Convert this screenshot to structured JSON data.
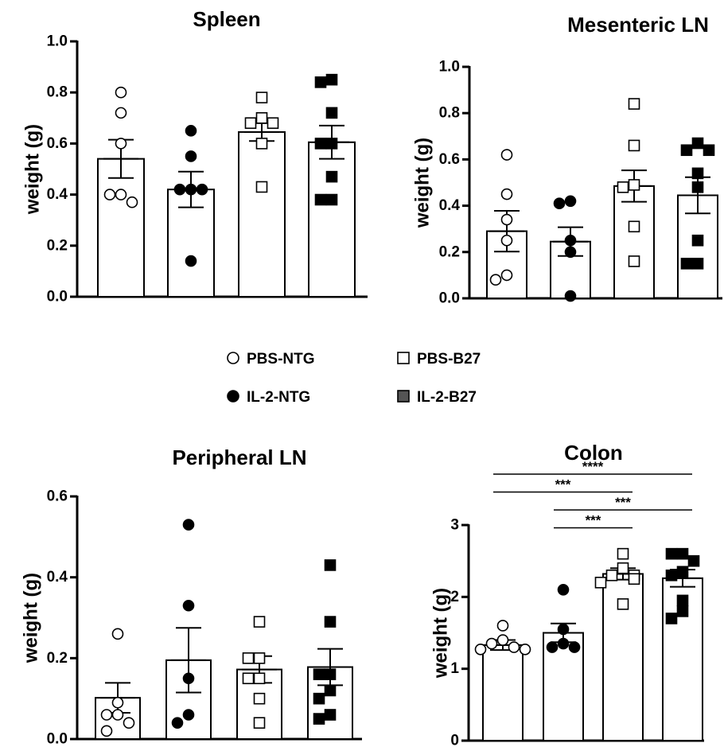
{
  "legend": {
    "items": [
      {
        "label": "PBS-NTG",
        "shape": "circle",
        "fill": "#ffffff"
      },
      {
        "label": "PBS-B27",
        "shape": "square",
        "fill": "#ffffff"
      },
      {
        "label": "IL-2-NTG",
        "shape": "circle",
        "fill": "#000000"
      },
      {
        "label": "IL-2-B27",
        "shape": "square",
        "fill": "#555555"
      }
    ]
  },
  "chart_data": [
    {
      "type": "bar",
      "title": "Spleen",
      "ylabel": "weight (g)",
      "ylim": [
        0,
        1.0
      ],
      "yticks": [
        "0.0",
        "0.2",
        "0.4",
        "0.6",
        "0.8",
        "1.0"
      ],
      "categories": [
        "PBS-NTG",
        "IL-2-NTG",
        "PBS-B27",
        "IL-2-B27"
      ],
      "values": [
        0.54,
        0.42,
        0.645,
        0.605
      ],
      "sem": [
        0.075,
        0.07,
        0.035,
        0.065
      ],
      "points": [
        [
          0.8,
          0.72,
          0.6,
          0.4,
          0.4,
          0.37
        ],
        [
          0.65,
          0.55,
          0.42,
          0.42,
          0.42,
          0.14
        ],
        [
          0.78,
          0.7,
          0.68,
          0.68,
          0.6,
          0.43
        ],
        [
          0.84,
          0.85,
          0.72,
          0.6,
          0.6,
          0.47,
          0.38,
          0.38
        ]
      ],
      "significance": []
    },
    {
      "type": "bar",
      "title": "Mesenteric LN",
      "ylabel": "weight (g)",
      "ylim": [
        0,
        1.0
      ],
      "yticks": [
        "0.0",
        "0.2",
        "0.4",
        "0.6",
        "0.8",
        "1.0"
      ],
      "categories": [
        "PBS-NTG",
        "IL-2-NTG",
        "PBS-B27",
        "IL-2-B27"
      ],
      "values": [
        0.29,
        0.245,
        0.485,
        0.445
      ],
      "sem": [
        0.088,
        0.062,
        0.068,
        0.078
      ],
      "points": [
        [
          0.62,
          0.45,
          0.34,
          0.25,
          0.1,
          0.08
        ],
        [
          0.41,
          0.42,
          0.25,
          0.2,
          0.01
        ],
        [
          0.84,
          0.66,
          0.49,
          0.48,
          0.31,
          0.16
        ],
        [
          0.67,
          0.64,
          0.64,
          0.54,
          0.48,
          0.25,
          0.15,
          0.15
        ]
      ],
      "significance": []
    },
    {
      "type": "bar",
      "title": "Peripheral LN",
      "ylabel": "weight (g)",
      "ylim": [
        0,
        0.6
      ],
      "yticks": [
        "0.0",
        "0.2",
        "0.4",
        "0.6"
      ],
      "categories": [
        "PBS-NTG",
        "IL-2-NTG",
        "PBS-B27",
        "IL-2-B27"
      ],
      "values": [
        0.102,
        0.195,
        0.172,
        0.178
      ],
      "sem": [
        0.037,
        0.08,
        0.033,
        0.045
      ],
      "points": [
        [
          0.26,
          0.09,
          0.06,
          0.06,
          0.04,
          0.02
        ],
        [
          0.53,
          0.33,
          0.15,
          0.06,
          0.04
        ],
        [
          0.29,
          0.2,
          0.2,
          0.15,
          0.15,
          0.1,
          0.04
        ],
        [
          0.43,
          0.29,
          0.16,
          0.16,
          0.12,
          0.1,
          0.06,
          0.05
        ]
      ],
      "significance": []
    },
    {
      "type": "bar",
      "title": "Colon",
      "ylabel": "weight (g)",
      "ylim": [
        0,
        3
      ],
      "yticks": [
        "0",
        "1",
        "2",
        "3"
      ],
      "categories": [
        "PBS-NTG",
        "IL-2-NTG",
        "PBS-B27",
        "IL-2-B27"
      ],
      "values": [
        1.33,
        1.5,
        2.32,
        2.26
      ],
      "sem": [
        0.07,
        0.13,
        0.08,
        0.12
      ],
      "points": [
        [
          1.6,
          1.4,
          1.35,
          1.3,
          1.27,
          1.27
        ],
        [
          2.1,
          1.55,
          1.35,
          1.3,
          1.3
        ],
        [
          2.6,
          2.4,
          2.3,
          2.3,
          2.25,
          2.2,
          1.9
        ],
        [
          2.6,
          2.6,
          2.5,
          2.35,
          2.3,
          1.95,
          1.8,
          1.7
        ]
      ],
      "significance": [
        {
          "from": 0,
          "to": 3,
          "label": "****",
          "level": 4
        },
        {
          "from": 0,
          "to": 2,
          "label": "***",
          "level": 3
        },
        {
          "from": 1,
          "to": 3,
          "label": "***",
          "level": 2
        },
        {
          "from": 1,
          "to": 2,
          "label": "***",
          "level": 1
        }
      ]
    }
  ]
}
